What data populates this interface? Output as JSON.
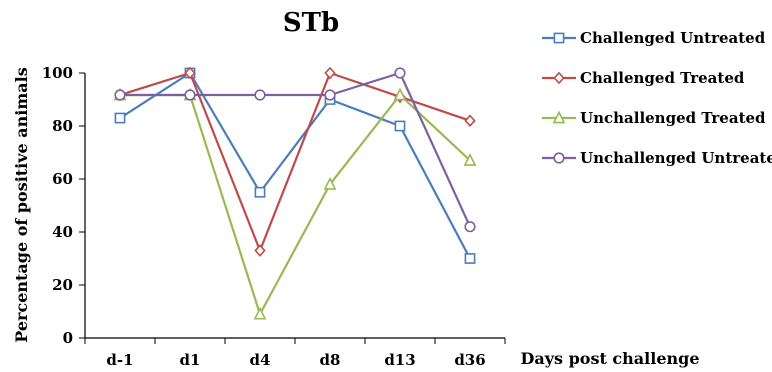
{
  "chart_data": {
    "type": "line",
    "title": "STb",
    "xlabel": "Days post challenge",
    "ylabel": "Percentage of positive animals",
    "categories": [
      "d-1",
      "d1",
      "d4",
      "d8",
      "d13",
      "d36"
    ],
    "ylim": [
      0,
      100
    ],
    "yticks": [
      0,
      20,
      40,
      60,
      80,
      100
    ],
    "grid": false,
    "legend_position": "right",
    "series": [
      {
        "name": "Challenged Untreated",
        "color": "#4A7EBB",
        "marker": "square",
        "values": [
          83,
          100,
          55,
          90,
          80,
          30
        ]
      },
      {
        "name": "Challenged Treated",
        "color": "#BE4B48",
        "marker": "diamond",
        "values": [
          91.7,
          100,
          33,
          100,
          91,
          82
        ]
      },
      {
        "name": "Unchallenged Treated",
        "color": "#98B954",
        "marker": "triangle",
        "values": [
          91.7,
          91.7,
          9,
          58,
          91.7,
          67
        ]
      },
      {
        "name": "Unchallenged Untreated",
        "color": "#7D60A0",
        "marker": "circle",
        "values": [
          91.7,
          91.7,
          91.7,
          91.7,
          100,
          42
        ]
      }
    ]
  }
}
